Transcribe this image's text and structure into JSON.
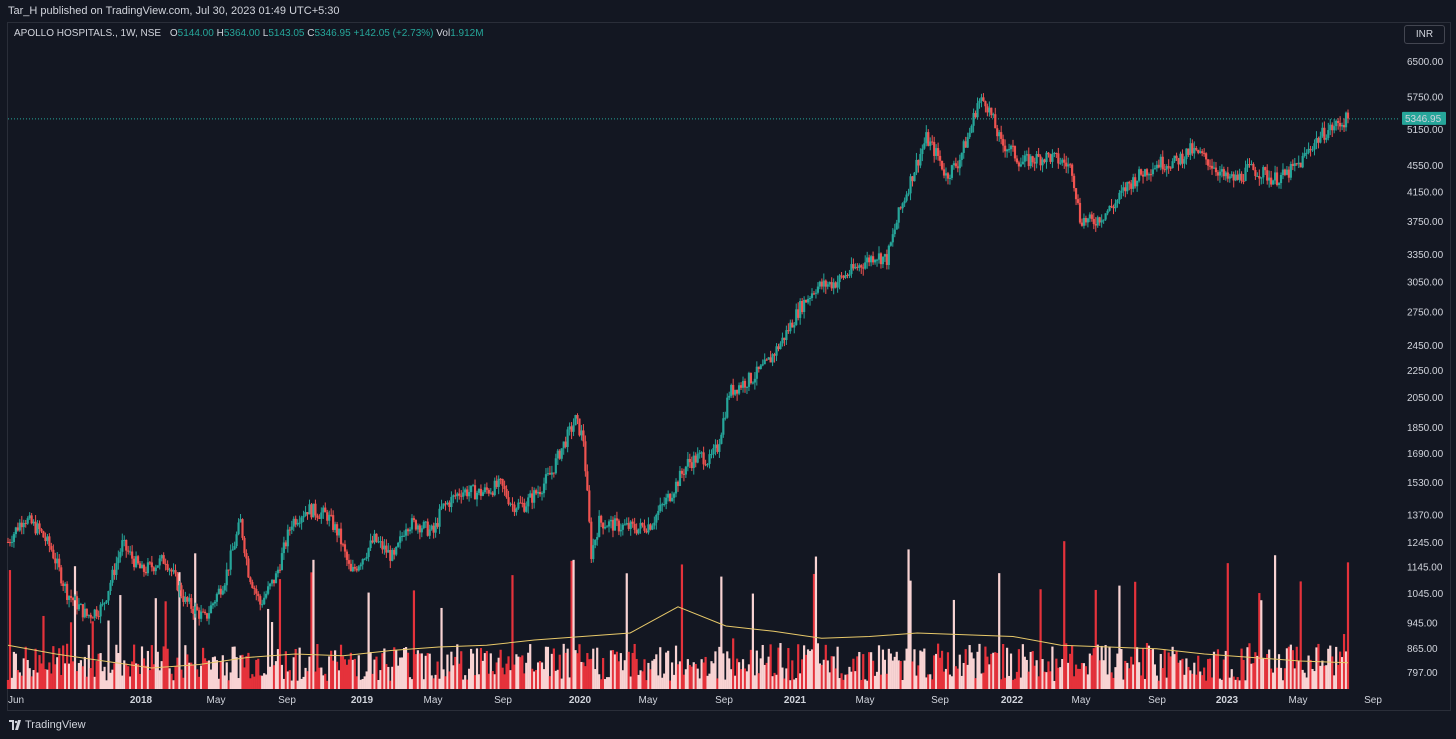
{
  "header": {
    "published": "Tar_H published on TradingView.com, Jul 30, 2023 01:49 UTC+5:30"
  },
  "legend": {
    "symbol": "APOLLO HOSPITALS., 1W, NSE",
    "o_label": "O",
    "o_value": "5144.00",
    "h_label": "H",
    "h_value": "5364.00",
    "l_label": "L",
    "l_value": "5143.05",
    "c_label": "C",
    "c_value": "5346.95",
    "change": "+142.05 (+2.73%)",
    "vol_label": "Vol",
    "vol_value": "1.912M"
  },
  "currency_button": "INR",
  "footer": {
    "brand": "TradingView"
  },
  "colors": {
    "up": "#26a69a",
    "down": "#ef5350",
    "vol_up": "#f8d3d3",
    "vol_down": "#e5323b",
    "vol_ma": "#e8c96a",
    "last_price_bg": "#26a69a",
    "grid_border": "#2a2e39"
  },
  "chart_data": {
    "type": "candlestick",
    "interval": "1W",
    "exchange": "NSE",
    "symbol": "APOLLO HOSPITALS.",
    "y_scale": "log",
    "last_price": "5346.95",
    "price_ticks": [
      "6500.00",
      "5750.00",
      "5150.00",
      "4550.00",
      "4150.00",
      "3750.00",
      "3350.00",
      "3050.00",
      "2750.00",
      "2450.00",
      "2250.00",
      "2050.00",
      "1850.00",
      "1690.00",
      "1530.00",
      "1370.00",
      "1245.00",
      "1145.00",
      "1045.00",
      "945.00",
      "865.00",
      "797.00"
    ],
    "time_ticks": [
      {
        "label": "Jun",
        "bold": false
      },
      {
        "label": "2018",
        "bold": true
      },
      {
        "label": "May",
        "bold": false
      },
      {
        "label": "Sep",
        "bold": false
      },
      {
        "label": "2019",
        "bold": true
      },
      {
        "label": "May",
        "bold": false
      },
      {
        "label": "Sep",
        "bold": false
      },
      {
        "label": "2020",
        "bold": true
      },
      {
        "label": "May",
        "bold": false
      },
      {
        "label": "Sep",
        "bold": false
      },
      {
        "label": "2021",
        "bold": true
      },
      {
        "label": "May",
        "bold": false
      },
      {
        "label": "Sep",
        "bold": false
      },
      {
        "label": "2022",
        "bold": true
      },
      {
        "label": "May",
        "bold": false
      },
      {
        "label": "Sep",
        "bold": false
      },
      {
        "label": "2023",
        "bold": true
      },
      {
        "label": "May",
        "bold": false
      },
      {
        "label": "Sep",
        "bold": false
      }
    ],
    "price_path": [
      [
        0,
        1250
      ],
      [
        8,
        1360
      ],
      [
        16,
        1300
      ],
      [
        22,
        1220
      ],
      [
        30,
        1050
      ],
      [
        40,
        970
      ],
      [
        48,
        1000
      ],
      [
        58,
        1240
      ],
      [
        68,
        1130
      ],
      [
        80,
        1180
      ],
      [
        90,
        1020
      ],
      [
        100,
        960
      ],
      [
        110,
        1100
      ],
      [
        118,
        1340
      ],
      [
        122,
        1130
      ],
      [
        128,
        1010
      ],
      [
        136,
        1110
      ],
      [
        144,
        1340
      ],
      [
        152,
        1400
      ],
      [
        162,
        1370
      ],
      [
        168,
        1280
      ],
      [
        174,
        1120
      ],
      [
        186,
        1260
      ],
      [
        196,
        1180
      ],
      [
        202,
        1330
      ],
      [
        208,
        1330
      ],
      [
        216,
        1290
      ],
      [
        220,
        1400
      ],
      [
        230,
        1490
      ],
      [
        240,
        1480
      ],
      [
        250,
        1520
      ],
      [
        256,
        1420
      ],
      [
        262,
        1420
      ],
      [
        270,
        1500
      ],
      [
        276,
        1590
      ],
      [
        280,
        1700
      ],
      [
        288,
        1900
      ],
      [
        292,
        1780
      ],
      [
        296,
        1200
      ],
      [
        300,
        1340
      ],
      [
        310,
        1320
      ],
      [
        320,
        1310
      ],
      [
        326,
        1330
      ],
      [
        336,
        1470
      ],
      [
        345,
        1640
      ],
      [
        352,
        1680
      ],
      [
        356,
        1650
      ],
      [
        360,
        1730
      ],
      [
        366,
        2090
      ],
      [
        372,
        2150
      ],
      [
        378,
        2200
      ],
      [
        385,
        2300
      ],
      [
        393,
        2500
      ],
      [
        402,
        2800
      ],
      [
        410,
        3000
      ],
      [
        420,
        3050
      ],
      [
        430,
        3200
      ],
      [
        440,
        3350
      ],
      [
        446,
        3300
      ],
      [
        452,
        3850
      ],
      [
        460,
        4500
      ],
      [
        466,
        5000
      ],
      [
        472,
        4700
      ],
      [
        476,
        4400
      ],
      [
        482,
        4600
      ],
      [
        488,
        5100
      ],
      [
        492,
        5650
      ],
      [
        496,
        5700
      ],
      [
        500,
        5300
      ],
      [
        504,
        4900
      ],
      [
        508,
        4850
      ],
      [
        514,
        4600
      ],
      [
        520,
        4650
      ],
      [
        528,
        4700
      ],
      [
        536,
        4600
      ],
      [
        540,
        4500
      ],
      [
        544,
        3800
      ],
      [
        550,
        3750
      ],
      [
        556,
        3850
      ],
      [
        562,
        4000
      ],
      [
        568,
        4250
      ],
      [
        576,
        4450
      ],
      [
        584,
        4600
      ],
      [
        592,
        4600
      ],
      [
        600,
        4800
      ],
      [
        606,
        4700
      ],
      [
        612,
        4550
      ],
      [
        618,
        4350
      ],
      [
        624,
        4350
      ],
      [
        630,
        4500
      ],
      [
        636,
        4450
      ],
      [
        642,
        4350
      ],
      [
        648,
        4400
      ],
      [
        656,
        4600
      ],
      [
        662,
        4900
      ],
      [
        668,
        5100
      ],
      [
        674,
        5230
      ],
      [
        680,
        5350
      ]
    ],
    "volume_ma_description_values": [
      905,
      880,
      860,
      840,
      850,
      870,
      880,
      875,
      890,
      900,
      905,
      920,
      930,
      940,
      1015,
      960,
      945,
      925,
      930,
      940,
      935,
      930,
      905,
      900,
      895,
      880,
      870,
      860,
      855
    ]
  }
}
